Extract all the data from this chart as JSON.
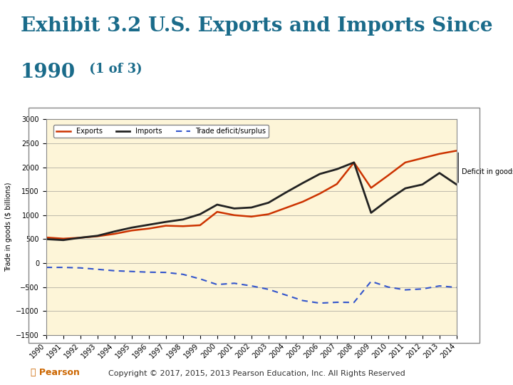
{
  "title_main": "Exhibit 3.2 U.S. Exports and Imports Since",
  "title_year": "1990",
  "title_suffix": " (1 of 3)",
  "title_color": "#1a6b8a",
  "copyright_text": "Copyright © 2017, 2015, 2013 Pearson Education, Inc. All Rights Reserved",
  "bg_color": "#fdf5d8",
  "plot_bg_color": "#fdf5d8",
  "ylabel": "Trade in goods ($ billions)",
  "years": [
    1990,
    1991,
    1992,
    1993,
    1994,
    1995,
    1996,
    1997,
    1998,
    1999,
    2000,
    2001,
    2002,
    2003,
    2004,
    2005,
    2006,
    2007,
    2008,
    2009,
    2010,
    2011,
    2012,
    2013,
    2014
  ],
  "exports": [
    535,
    510,
    530,
    560,
    610,
    680,
    720,
    780,
    770,
    790,
    1070,
    1000,
    970,
    1020,
    1150,
    1280,
    1450,
    1650,
    2100,
    1570,
    1830,
    2100,
    2190,
    2280,
    2345
  ],
  "imports": [
    500,
    480,
    530,
    570,
    660,
    740,
    800,
    860,
    910,
    1020,
    1220,
    1140,
    1160,
    1260,
    1470,
    1670,
    1860,
    1960,
    2100,
    1050,
    1320,
    1560,
    1640,
    1880,
    1640
  ],
  "deficit": [
    -90,
    -90,
    -100,
    -130,
    -160,
    -175,
    -190,
    -195,
    -235,
    -330,
    -448,
    -421,
    -476,
    -548,
    -665,
    -782,
    -836,
    -818,
    -821,
    -381,
    -500,
    -559,
    -540,
    -477,
    -508
  ],
  "exports_color": "#cc3300",
  "imports_color": "#222222",
  "deficit_color": "#3355cc",
  "annotation_text": "Deficit in goods",
  "ylim_min": -1500,
  "ylim_max": 3000,
  "yticks": [
    -1500,
    -1000,
    -500,
    0,
    500,
    1000,
    1500,
    2000,
    2500,
    3000
  ]
}
